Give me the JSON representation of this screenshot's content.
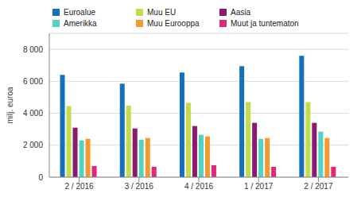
{
  "chart_data": {
    "type": "bar",
    "y_label": "milj. euroa",
    "categories": [
      "2 / 2016",
      "3 / 2016",
      "4 / 2016",
      "1 / 2017",
      "2 / 2017"
    ],
    "series": [
      {
        "name": "Euroalue",
        "color": "#1470b8",
        "values": [
          6400,
          5850,
          6550,
          6950,
          7600
        ]
      },
      {
        "name": "Muu EU",
        "color": "#c3dc4a",
        "values": [
          4450,
          4480,
          4650,
          4700,
          4700
        ]
      },
      {
        "name": "Aasia",
        "color": "#8b1a6f",
        "values": [
          3100,
          3050,
          3200,
          3400,
          3400
        ]
      },
      {
        "name": "Amerikka",
        "color": "#4fd3c5",
        "values": [
          2300,
          2350,
          2650,
          2400,
          2850
        ]
      },
      {
        "name": "Muu Eurooppa",
        "color": "#f5992e",
        "values": [
          2400,
          2450,
          2550,
          2450,
          2450
        ]
      },
      {
        "name": "Muut ja tuntematon",
        "color": "#e1267b",
        "values": [
          700,
          650,
          750,
          650,
          650
        ]
      }
    ],
    "ylim": [
      0,
      9000
    ],
    "yticks": [
      0,
      {
        "value": 2000,
        "label": "2 000"
      },
      {
        "value": 4000,
        "label": "4 000"
      },
      {
        "value": 6000,
        "label": "6 000"
      },
      {
        "value": 8000,
        "label": "8 000"
      }
    ],
    "grid": true,
    "legend": "top"
  }
}
